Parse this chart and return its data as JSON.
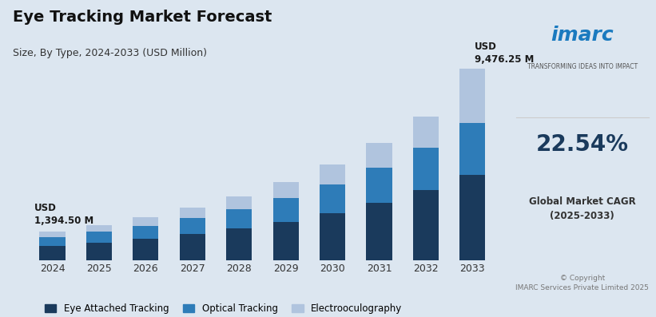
{
  "title": "Eye Tracking Market Forecast",
  "subtitle": "Size, By Type, 2024-2033 (USD Million)",
  "years": [
    2024,
    2025,
    2026,
    2027,
    2028,
    2029,
    2030,
    2031,
    2032,
    2033
  ],
  "eye_attached": [
    700,
    870,
    1050,
    1280,
    1560,
    1900,
    2320,
    2830,
    3450,
    4200
  ],
  "optical": [
    430,
    530,
    650,
    790,
    960,
    1180,
    1440,
    1750,
    2130,
    2600
  ],
  "electrooculography": [
    264.5,
    330,
    410,
    510,
    630,
    780,
    970,
    1210,
    1510,
    2676.25
  ],
  "label_2024": "USD\n1,394.50 M",
  "label_2033": "USD\n9,476.25 M",
  "color_eye_attached": "#1a3a5c",
  "color_optical": "#2e7cb8",
  "color_electrooculography": "#b0c4de",
  "bg_color": "#dce6f0",
  "legend_labels": [
    "Eye Attached Tracking",
    "Optical Tracking",
    "Electrooculography"
  ],
  "ylim": [
    0,
    11000
  ],
  "bar_width": 0.55
}
